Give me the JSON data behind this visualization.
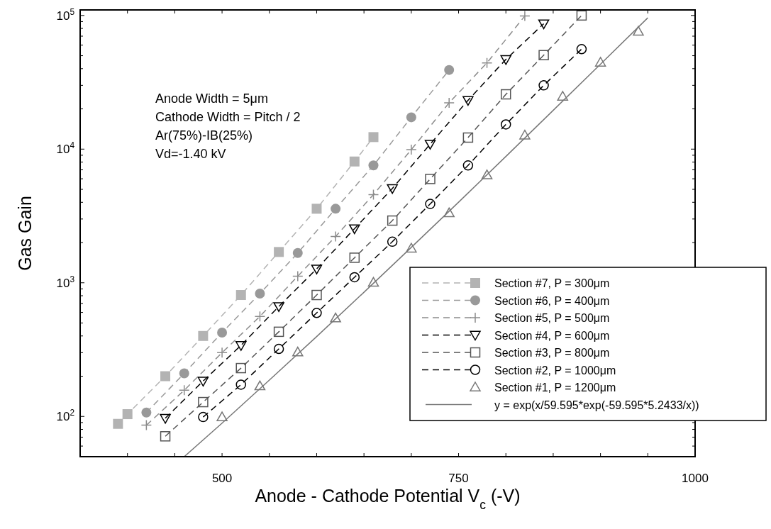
{
  "chart_data": {
    "type": "scatter",
    "xlabel": "Anode - Cathode Potential V$_{c}$ (-V)",
    "ylabel": "Gas Gain",
    "annotations": [
      "Anode Width = 5μm",
      "Cathode Width = Pitch / 2",
      "Ar(75%)-IB(25%)",
      "Vd=-1.40 kV"
    ],
    "log": "y",
    "xlim": [
      350,
      1000
    ],
    "xticks": [
      {
        "value": 400,
        "label": null
      },
      {
        "value": 450,
        "label": null
      },
      500,
      {
        "value": 550,
        "label": null
      },
      {
        "value": 600,
        "label": null
      },
      {
        "value": 650,
        "label": null
      },
      {
        "value": 700,
        "label": null
      },
      750,
      {
        "value": 800,
        "label": null
      },
      {
        "value": 850,
        "label": null
      },
      {
        "value": 900,
        "label": null
      },
      {
        "value": 950,
        "label": null
      },
      1000
    ],
    "ylim": [
      50,
      110000
    ],
    "yticks": [
      {
        "value": 60,
        "label": null
      },
      {
        "value": 70,
        "label": null
      },
      {
        "value": 80,
        "label": null
      },
      {
        "value": 90,
        "label": null
      },
      {
        "value": 100,
        "label": "10$^{2}$"
      },
      {
        "value": 200,
        "label": null
      },
      {
        "value": 300,
        "label": null
      },
      {
        "value": 400,
        "label": null
      },
      {
        "value": 500,
        "label": null
      },
      {
        "value": 600,
        "label": null
      },
      {
        "value": 700,
        "label": null
      },
      {
        "value": 800,
        "label": null
      },
      {
        "value": 900,
        "label": null
      },
      {
        "value": 1000,
        "label": "10$^{3}$"
      },
      {
        "value": 2000,
        "label": null
      },
      {
        "value": 3000,
        "label": null
      },
      {
        "value": 4000,
        "label": null
      },
      {
        "value": 5000,
        "label": null
      },
      {
        "value": 6000,
        "label": null
      },
      {
        "value": 7000,
        "label": null
      },
      {
        "value": 8000,
        "label": null
      },
      {
        "value": 9000,
        "label": null
      },
      {
        "value": 10000,
        "label": "10$^{4}$"
      },
      {
        "value": 20000,
        "label": null
      },
      {
        "value": 30000,
        "label": null
      },
      {
        "value": 40000,
        "label": null
      },
      {
        "value": 50000,
        "label": null
      },
      {
        "value": 60000,
        "label": null
      },
      {
        "value": 70000,
        "label": null
      },
      {
        "value": 80000,
        "label": null
      },
      {
        "value": 90000,
        "label": null
      },
      {
        "value": 100000,
        "label": "10$^{5}$"
      }
    ],
    "legend": "bottom right",
    "series": [
      {
        "name": "Section #7, P = 300μm",
        "type": "line",
        "color": "#b3b3b3",
        "marker": "square",
        "line_style": "dashed",
        "x": [
          390,
          400,
          440,
          480,
          520,
          560,
          600,
          640,
          660
        ],
        "values": [
          88,
          104,
          200,
          400,
          810,
          1700,
          3580,
          8080,
          12300
        ]
      },
      {
        "name": "Section #6, P = 400μm",
        "type": "line",
        "color": "#999999",
        "marker": "circle",
        "line_style": "dashed",
        "x": [
          420,
          460,
          500,
          540,
          580,
          620,
          660,
          700,
          740
        ],
        "values": [
          107,
          210,
          424,
          830,
          1670,
          3580,
          7550,
          17300,
          39100
        ]
      },
      {
        "name": "Section #5, P = 500μm",
        "type": "line",
        "color": "#8c8c8c",
        "marker": "cross",
        "line_style": "dashed",
        "x": [
          420,
          460,
          500,
          540,
          580,
          620,
          660,
          700,
          740,
          780,
          820
        ],
        "values": [
          86,
          157,
          300,
          560,
          1120,
          2220,
          4570,
          9900,
          22200,
          44200,
          99000
        ]
      },
      {
        "name": "Section #4, P = 600μm",
        "type": "line",
        "color": "#000000",
        "marker": "triangle-down",
        "line_style": "dashed",
        "x": [
          440,
          480,
          520,
          560,
          600,
          640,
          680,
          720,
          760,
          800,
          840
        ],
        "values": [
          97,
          184,
          340,
          665,
          1270,
          2540,
          5080,
          10900,
          23200,
          46900,
          86700
        ]
      },
      {
        "name": "Section #3, P = 800μm",
        "type": "line",
        "color": "#555555",
        "marker": "square-open",
        "line_style": "dashed",
        "x": [
          440,
          480,
          520,
          560,
          600,
          640,
          680,
          720,
          760,
          800,
          840,
          880
        ],
        "values": [
          71,
          128,
          230,
          430,
          810,
          1540,
          2920,
          5980,
          12200,
          25700,
          50500,
          100000
        ]
      },
      {
        "name": "Section #2, P = 1000μm",
        "type": "line",
        "color": "#000000",
        "marker": "circle-open",
        "line_style": "dashed",
        "x": [
          480,
          520,
          560,
          600,
          640,
          680,
          720,
          760,
          800,
          840,
          880
        ],
        "values": [
          99,
          173,
          320,
          595,
          1100,
          2030,
          3890,
          7550,
          15300,
          30000,
          56000
        ]
      },
      {
        "name": "Section #1, P = 1200μm",
        "color": "#777777",
        "marker": "triangle",
        "x": [
          500,
          540,
          580,
          620,
          660,
          700,
          740,
          780,
          820,
          860,
          900,
          940
        ],
        "values": [
          99,
          169,
          303,
          544,
          1005,
          1810,
          3330,
          6400,
          12700,
          24800,
          44600,
          76000
        ]
      },
      {
        "name": "y = exp(x/59.595*exp(-59.595*5.2433/x))",
        "type": "line",
        "color": "#777777",
        "marker": "none",
        "line_style": "solid",
        "x": [
          460,
          500,
          550,
          600,
          650,
          700,
          750,
          800,
          850,
          900,
          950
        ],
        "values": [
          50,
          89,
          187,
          396,
          850,
          1840,
          4010,
          8810,
          19500,
          43200,
          96000
        ]
      }
    ]
  }
}
